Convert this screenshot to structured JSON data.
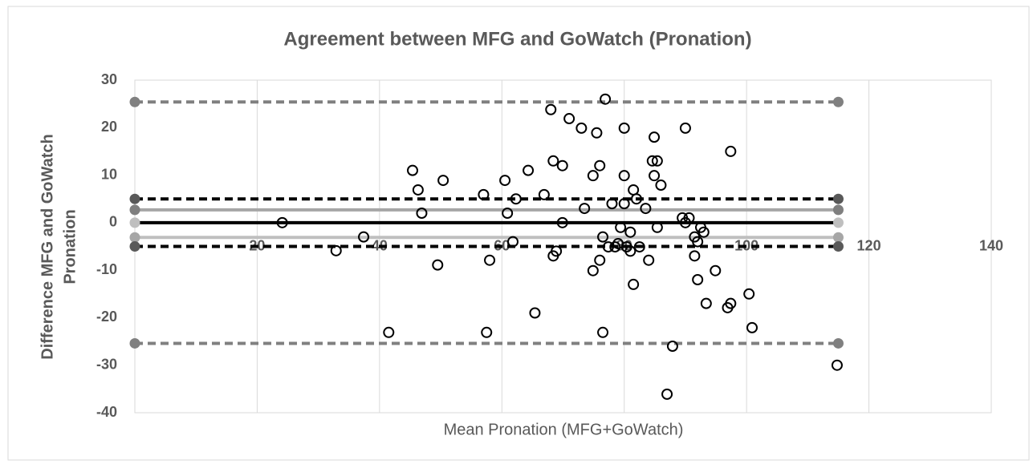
{
  "chart_data": {
    "type": "scatter",
    "title": "Agreement between MFG and GoWatch  (Pronation)",
    "xlabel": "Mean Pronation (MFG+GoWatch)",
    "ylabel": [
      "Difference MFG and GoWatch",
      "Pronation"
    ],
    "xlim": [
      0,
      140
    ],
    "ylim": [
      -40,
      30
    ],
    "xticks": [
      20,
      40,
      60,
      80,
      100,
      120,
      140
    ],
    "yticks": [
      -40,
      -30,
      -20,
      -10,
      0,
      10,
      20,
      30
    ],
    "grid": true,
    "marker_color": "#000000",
    "reference_x": [
      0,
      115
    ],
    "reference_lines": [
      {
        "y": 25.4,
        "line_color": "#808080",
        "marker_color": "#808080",
        "dashed": true
      },
      {
        "y": -25.4,
        "line_color": "#808080",
        "marker_color": "#808080",
        "dashed": true
      },
      {
        "y": 2.7,
        "line_color": "#a6a6a6",
        "marker_color": "#7f7f7f",
        "dashed": false
      },
      {
        "y": -3.1,
        "line_color": "#bfbfbf",
        "marker_color": "#a6a6a6",
        "dashed": false
      },
      {
        "y": 0,
        "line_color": "#000000",
        "marker_color": "#bfbfbf",
        "dashed": false
      },
      {
        "y": 5,
        "line_color": "#000000",
        "marker_color": "#595959",
        "dashed": true
      },
      {
        "y": -5,
        "line_color": "#000000",
        "marker_color": "#595959",
        "dashed": true
      }
    ],
    "x": [
      24.1,
      32.9,
      37.4,
      41.5,
      45.4,
      46.3,
      46.9,
      49.5,
      50.4,
      57.0,
      57.5,
      58.0,
      60.5,
      60.9,
      61.8,
      62.3,
      64.3,
      65.4,
      66.9,
      68.0,
      68.4,
      68.4,
      68.9,
      69.9,
      69.9,
      71.0,
      73.0,
      73.5,
      74.9,
      74.9,
      75.5,
      76.0,
      76.0,
      76.5,
      76.5,
      76.9,
      77.4,
      78.0,
      78.5,
      79.0,
      79.4,
      80.0,
      80.0,
      80.0,
      80.4,
      81.0,
      81.0,
      81.5,
      81.5,
      82.0,
      82.5,
      83.5,
      84.0,
      84.6,
      84.9,
      84.9,
      85.4,
      85.4,
      86.0,
      87.0,
      87.9,
      89.5,
      90.0,
      90.0,
      90.6,
      91.5,
      91.5,
      92.0,
      92.0,
      92.5,
      93.0,
      93.4,
      94.9,
      96.9,
      97.4,
      97.4,
      100.4,
      100.9,
      114.8
    ],
    "values": [
      0,
      -5.9,
      -3,
      -23.1,
      11,
      6.9,
      2,
      -8.9,
      8.9,
      5.9,
      -23.1,
      -7.9,
      8.9,
      2,
      -4,
      5,
      11,
      -19,
      5.9,
      23.8,
      -7,
      13,
      -6,
      12,
      0,
      21.9,
      19.9,
      3,
      -10.1,
      9.9,
      18.9,
      12,
      -7.9,
      -3,
      -23.1,
      26,
      -5.1,
      4,
      -5.1,
      -4.4,
      -1,
      19.9,
      9.9,
      4,
      -5.1,
      -6,
      -2,
      6.9,
      -13,
      5,
      -5.1,
      3,
      -7.9,
      13,
      18,
      9.9,
      13,
      -1,
      7.9,
      -36.1,
      -26,
      1,
      19.9,
      0,
      1,
      -7,
      -3,
      -12,
      -4,
      -1,
      -2,
      -17,
      -10.1,
      -17.9,
      -17,
      15,
      -15,
      -22.1,
      -30
    ]
  }
}
